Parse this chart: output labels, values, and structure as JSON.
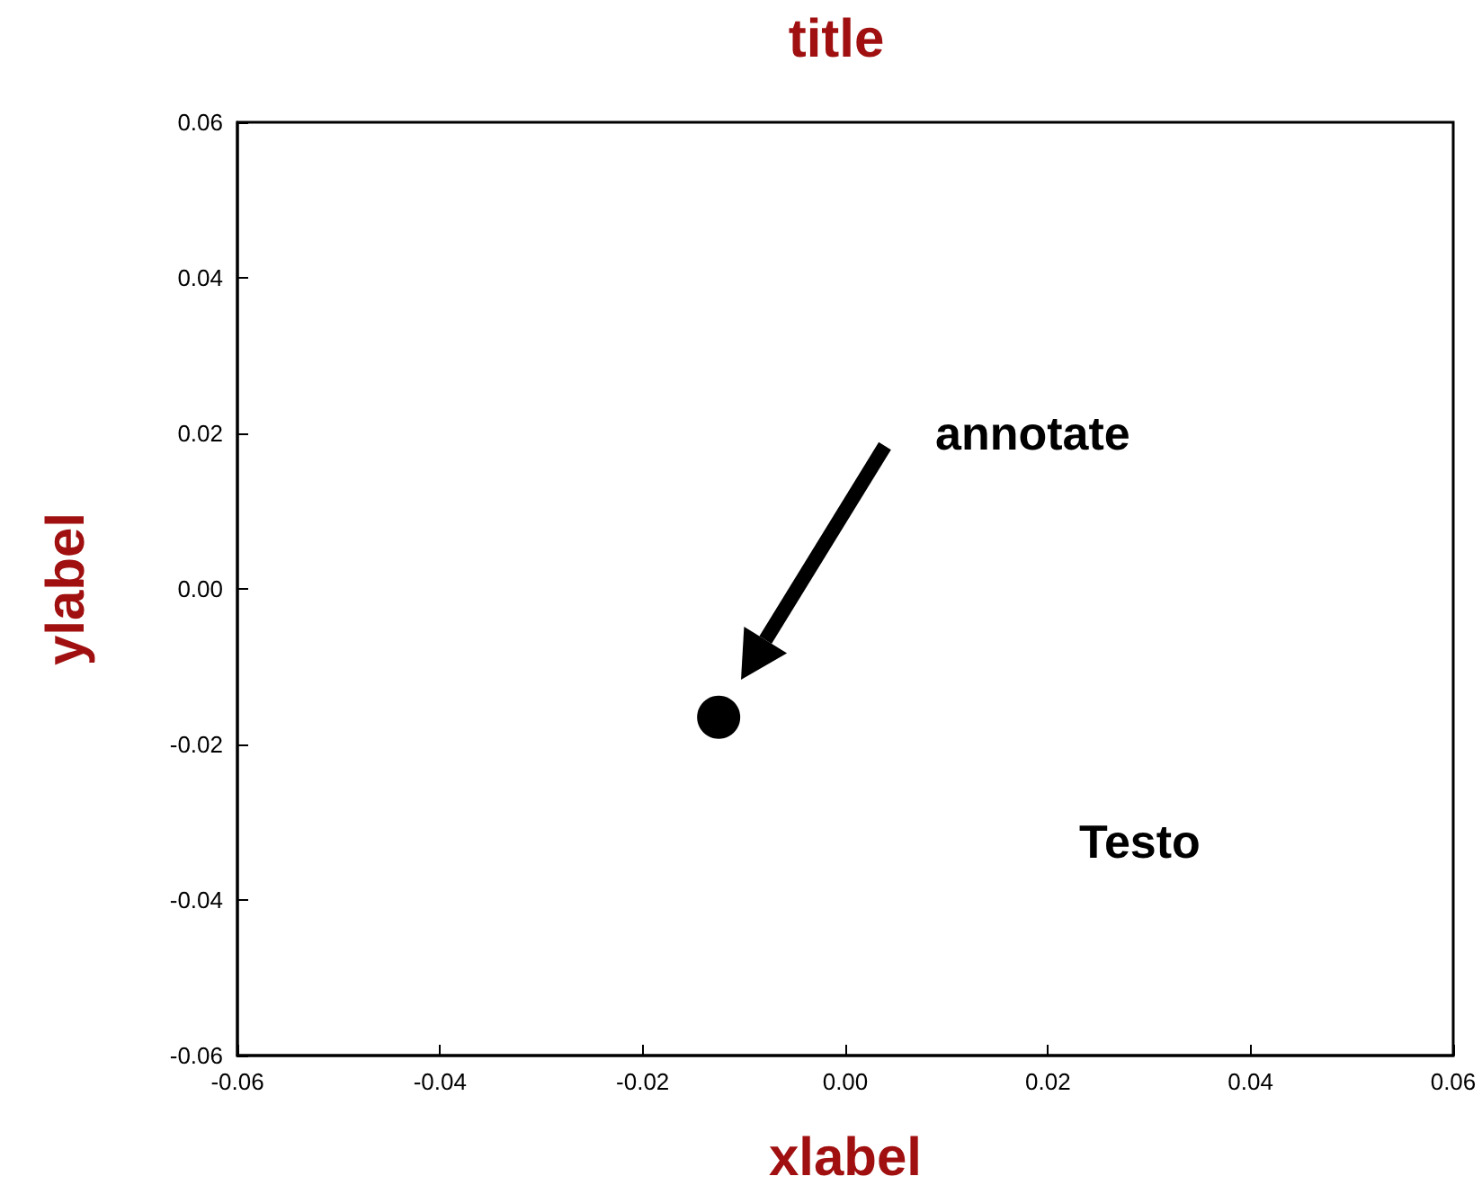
{
  "chart_data": {
    "type": "scatter",
    "title": "title",
    "xlabel": "xlabel",
    "ylabel": "ylabel",
    "x": [
      -0.0125
    ],
    "values": [
      -0.0165
    ],
    "color": "#000000",
    "marker": "circle",
    "grid": false,
    "xlim": [
      -0.06,
      0.06
    ],
    "ylim": [
      -0.06,
      0.06
    ],
    "xticks": [
      -0.06,
      -0.04,
      -0.02,
      {
        "value": 0,
        "label": "0.00"
      },
      0.02,
      0.04,
      0.06
    ],
    "yticks": [
      -0.06,
      -0.04,
      -0.02,
      {
        "value": 0,
        "label": "0.00"
      },
      0.02,
      0.04,
      0.06
    ],
    "annotations": [
      "annotate",
      "Testo"
    ]
  }
}
